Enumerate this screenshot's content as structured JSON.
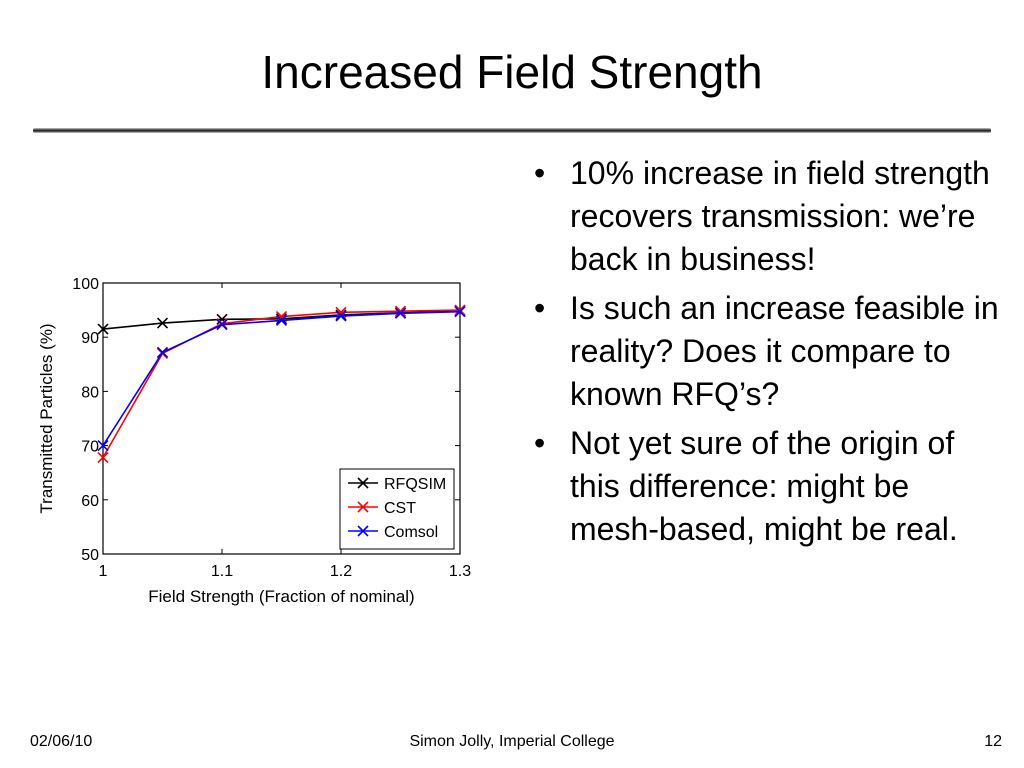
{
  "slide": {
    "title": "Increased Field Strength",
    "bullets": [
      "10% increase in field strength recovers transmission: we’re back in business!",
      "Is such an increase feasible in reality? Does it compare to known RFQ’s?",
      "Not yet sure of the origin of this difference: might be mesh-based, might be real."
    ],
    "bullet_glyph": "•"
  },
  "footer": {
    "date": "02/06/10",
    "author": "Simon Jolly, Imperial College",
    "page": "12"
  },
  "chart_data": {
    "type": "line",
    "title": "",
    "xlabel": "Field Strength (Fraction of nominal)",
    "ylabel": "Transmitted Particles (%)",
    "xlim": [
      1,
      1.3
    ],
    "ylim": [
      50,
      100
    ],
    "xticks": [
      "1",
      "1.1",
      "1.2",
      "1.3"
    ],
    "yticks": [
      "50",
      "60",
      "70",
      "80",
      "90",
      "100"
    ],
    "grid": false,
    "legend_position": "bottom-right",
    "series": [
      {
        "name": "RFQSIM",
        "color": "#000000",
        "marker": "x",
        "x": [
          1.0,
          1.05,
          1.1,
          1.15,
          1.2,
          1.25,
          1.3
        ],
        "y": [
          91.5,
          92.6,
          93.3,
          93.4,
          94.1,
          94.5,
          94.8
        ]
      },
      {
        "name": "CST",
        "color": "#ff0000",
        "marker": "x",
        "x": [
          1.0,
          1.05,
          1.1,
          1.15,
          1.2,
          1.25,
          1.3
        ],
        "y": [
          67.8,
          87.0,
          92.5,
          93.8,
          94.6,
          94.8,
          95.0
        ]
      },
      {
        "name": "Comsol",
        "color": "#0000ff",
        "marker": "x",
        "x": [
          1.0,
          1.05,
          1.1,
          1.15,
          1.2,
          1.25,
          1.3
        ],
        "y": [
          70.0,
          87.2,
          92.3,
          93.1,
          93.9,
          94.4,
          94.7
        ]
      }
    ]
  }
}
